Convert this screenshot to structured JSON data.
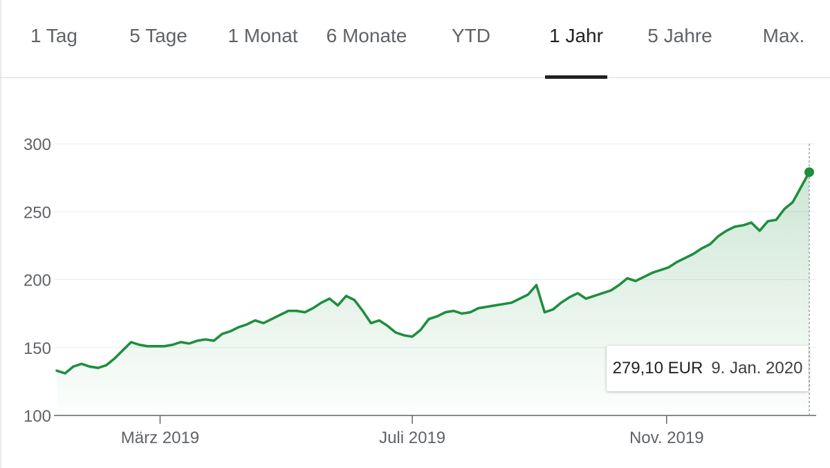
{
  "tabs": [
    {
      "label": "1 Tag",
      "active": false
    },
    {
      "label": "5 Tage",
      "active": false
    },
    {
      "label": "1 Monat",
      "active": false
    },
    {
      "label": "6 Monate",
      "active": false
    },
    {
      "label": "YTD",
      "active": false
    },
    {
      "label": "1 Jahr",
      "active": true
    },
    {
      "label": "5 Jahre",
      "active": false
    },
    {
      "label": "Max.",
      "active": false
    }
  ],
  "tooltip": {
    "value": "279,10 EUR",
    "date": "9. Jan. 2020"
  },
  "colors": {
    "line": "#1e8e3e",
    "fill": "#1e8e3e",
    "grid": "#e8eaed",
    "axis": "#5f6368"
  },
  "chart_data": {
    "type": "area",
    "title": "",
    "xlabel": "",
    "ylabel": "",
    "ylim": [
      100,
      300
    ],
    "yticks": [
      100,
      150,
      200,
      250,
      300
    ],
    "xlim": [
      "2019-01-10",
      "2020-01-09"
    ],
    "xticks": [
      {
        "label": "März 2019",
        "date": "2019-03-01"
      },
      {
        "label": "Juli 2019",
        "date": "2019-07-01"
      },
      {
        "label": "Nov. 2019",
        "date": "2019-11-01"
      }
    ],
    "grid": true,
    "series": [
      {
        "unit": "EUR",
        "points": [
          [
            "2019-01-10",
            133
          ],
          [
            "2019-01-14",
            131
          ],
          [
            "2019-01-18",
            136
          ],
          [
            "2019-01-22",
            138
          ],
          [
            "2019-01-26",
            136
          ],
          [
            "2019-01-30",
            135
          ],
          [
            "2019-02-03",
            137
          ],
          [
            "2019-02-07",
            142
          ],
          [
            "2019-02-11",
            148
          ],
          [
            "2019-02-15",
            154
          ],
          [
            "2019-02-19",
            152
          ],
          [
            "2019-02-23",
            151
          ],
          [
            "2019-02-27",
            151
          ],
          [
            "2019-03-03",
            151
          ],
          [
            "2019-03-07",
            152
          ],
          [
            "2019-03-11",
            154
          ],
          [
            "2019-03-15",
            153
          ],
          [
            "2019-03-19",
            155
          ],
          [
            "2019-03-23",
            156
          ],
          [
            "2019-03-27",
            155
          ],
          [
            "2019-03-31",
            160
          ],
          [
            "2019-04-04",
            162
          ],
          [
            "2019-04-08",
            165
          ],
          [
            "2019-04-12",
            167
          ],
          [
            "2019-04-16",
            170
          ],
          [
            "2019-04-20",
            168
          ],
          [
            "2019-04-24",
            171
          ],
          [
            "2019-04-28",
            174
          ],
          [
            "2019-05-02",
            177
          ],
          [
            "2019-05-06",
            177
          ],
          [
            "2019-05-10",
            176
          ],
          [
            "2019-05-14",
            179
          ],
          [
            "2019-05-18",
            183
          ],
          [
            "2019-05-22",
            186
          ],
          [
            "2019-05-26",
            181
          ],
          [
            "2019-05-30",
            188
          ],
          [
            "2019-06-03",
            185
          ],
          [
            "2019-06-07",
            177
          ],
          [
            "2019-06-11",
            168
          ],
          [
            "2019-06-15",
            170
          ],
          [
            "2019-06-19",
            166
          ],
          [
            "2019-06-23",
            161
          ],
          [
            "2019-06-27",
            159
          ],
          [
            "2019-07-01",
            158
          ],
          [
            "2019-07-05",
            163
          ],
          [
            "2019-07-09",
            171
          ],
          [
            "2019-07-13",
            173
          ],
          [
            "2019-07-17",
            176
          ],
          [
            "2019-07-21",
            177
          ],
          [
            "2019-07-25",
            175
          ],
          [
            "2019-07-29",
            176
          ],
          [
            "2019-08-02",
            179
          ],
          [
            "2019-08-06",
            180
          ],
          [
            "2019-08-10",
            181
          ],
          [
            "2019-08-14",
            182
          ],
          [
            "2019-08-18",
            183
          ],
          [
            "2019-08-22",
            186
          ],
          [
            "2019-08-26",
            189
          ],
          [
            "2019-08-30",
            196
          ],
          [
            "2019-09-03",
            176
          ],
          [
            "2019-09-07",
            178
          ],
          [
            "2019-09-11",
            183
          ],
          [
            "2019-09-15",
            187
          ],
          [
            "2019-09-19",
            190
          ],
          [
            "2019-09-23",
            186
          ],
          [
            "2019-09-27",
            188
          ],
          [
            "2019-10-01",
            190
          ],
          [
            "2019-10-05",
            192
          ],
          [
            "2019-10-09",
            196
          ],
          [
            "2019-10-13",
            201
          ],
          [
            "2019-10-17",
            199
          ],
          [
            "2019-10-21",
            202
          ],
          [
            "2019-10-25",
            205
          ],
          [
            "2019-10-29",
            207
          ],
          [
            "2019-11-02",
            209
          ],
          [
            "2019-11-06",
            213
          ],
          [
            "2019-11-10",
            216
          ],
          [
            "2019-11-14",
            219
          ],
          [
            "2019-11-18",
            223
          ],
          [
            "2019-11-22",
            226
          ],
          [
            "2019-11-26",
            232
          ],
          [
            "2019-11-30",
            236
          ],
          [
            "2019-12-04",
            239
          ],
          [
            "2019-12-08",
            240
          ],
          [
            "2019-12-12",
            242
          ],
          [
            "2019-12-16",
            236
          ],
          [
            "2019-12-20",
            243
          ],
          [
            "2019-12-24",
            244
          ],
          [
            "2019-12-28",
            252
          ],
          [
            "2020-01-01",
            257
          ],
          [
            "2020-01-05",
            268
          ],
          [
            "2020-01-09",
            279.1
          ]
        ]
      }
    ],
    "highlight": {
      "date": "2020-01-09",
      "value": 279.1
    }
  }
}
